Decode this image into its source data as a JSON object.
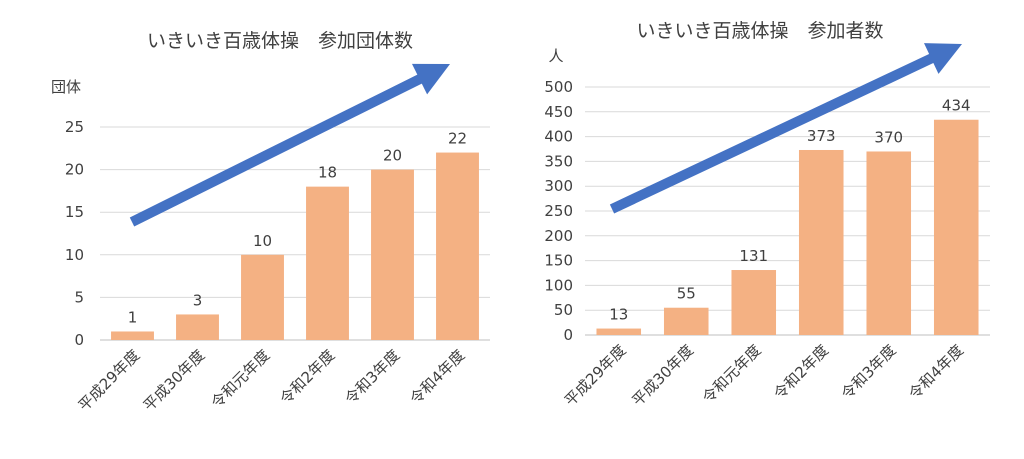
{
  "chart_data": [
    {
      "type": "bar",
      "title": "いきいき百歳体操　参加団体数",
      "ylabel": "団体",
      "xlabel": "",
      "categories": [
        "平成29年度",
        "平成30年度",
        "令和元年度",
        "令和2年度",
        "令和3年度",
        "令和4年度"
      ],
      "values": [
        1,
        3,
        10,
        18,
        20,
        22
      ],
      "ylim": [
        0,
        25
      ],
      "yticks": [
        0,
        5,
        10,
        15,
        20,
        25
      ],
      "grid": true,
      "bar_color": "#F4B183",
      "arrow_color": "#4472C4"
    },
    {
      "type": "bar",
      "title": "いきいき百歳体操　参加者数",
      "ylabel": "人",
      "xlabel": "",
      "categories": [
        "平成29年度",
        "平成30年度",
        "令和元年度",
        "令和2年度",
        "令和3年度",
        "令和4年度"
      ],
      "values": [
        13,
        55,
        131,
        373,
        370,
        434
      ],
      "ylim": [
        0,
        500
      ],
      "yticks": [
        0,
        50,
        100,
        150,
        200,
        250,
        300,
        350,
        400,
        450,
        500
      ],
      "grid": true,
      "bar_color": "#F4B183",
      "arrow_color": "#4472C4"
    }
  ]
}
